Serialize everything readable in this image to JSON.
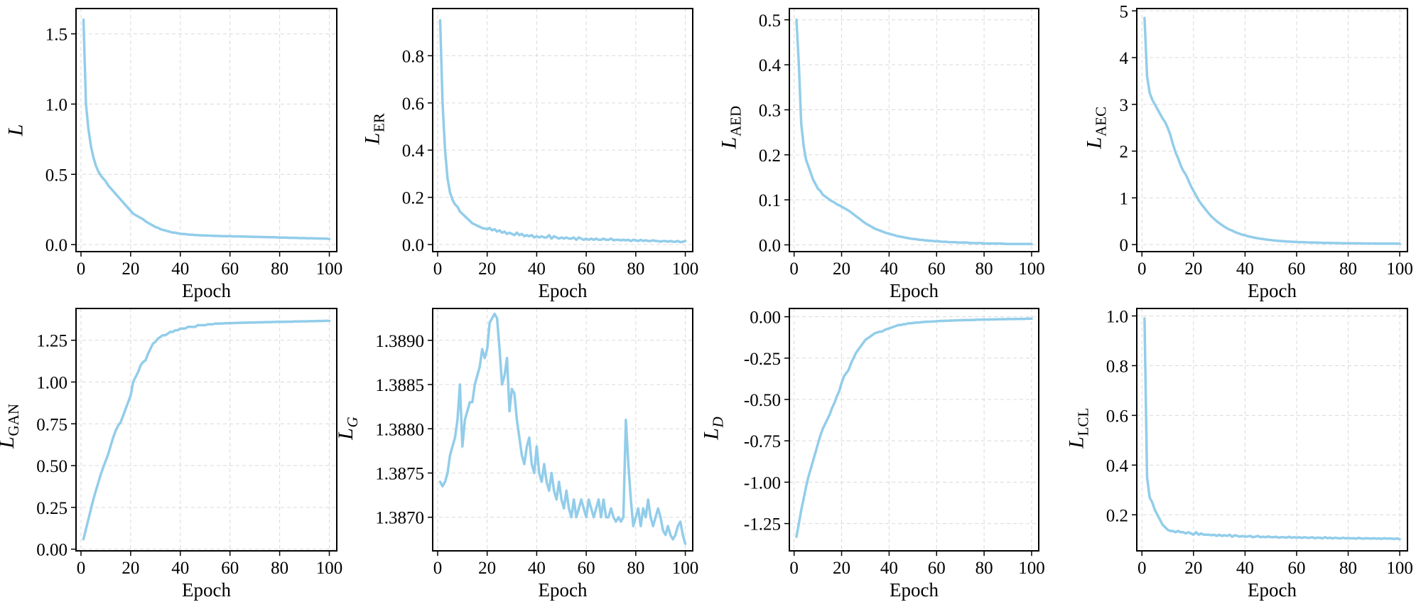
{
  "figure": {
    "line_color": "#92cdea",
    "grid": true
  },
  "chart_data": [
    {
      "type": "line",
      "ylabel": "L",
      "ylabel_sub": "",
      "sub_italic": false,
      "xlabel": "Epoch",
      "xlim": [
        -2,
        103
      ],
      "ylim": [
        -0.05,
        1.68
      ],
      "xticks": [
        0,
        20,
        40,
        60,
        80,
        100
      ],
      "xtick_labels": [
        "0",
        "20",
        "40",
        "60",
        "80",
        "100"
      ],
      "yticks": [
        0,
        0.5,
        1.0,
        1.5
      ],
      "ytick_labels": [
        "0.0",
        "0.5",
        "1.0",
        "1.5"
      ],
      "x_start": 1,
      "x_step": 1,
      "y": [
        1.6,
        1.0,
        0.82,
        0.7,
        0.62,
        0.56,
        0.52,
        0.49,
        0.47,
        0.45,
        0.42,
        0.4,
        0.38,
        0.36,
        0.34,
        0.32,
        0.3,
        0.28,
        0.26,
        0.24,
        0.22,
        0.21,
        0.2,
        0.19,
        0.18,
        0.165,
        0.155,
        0.145,
        0.135,
        0.125,
        0.12,
        0.11,
        0.105,
        0.1,
        0.095,
        0.09,
        0.085,
        0.085,
        0.08,
        0.078,
        0.075,
        0.075,
        0.072,
        0.07,
        0.07,
        0.068,
        0.068,
        0.066,
        0.065,
        0.065,
        0.064,
        0.064,
        0.063,
        0.062,
        0.062,
        0.061,
        0.06,
        0.06,
        0.06,
        0.06,
        0.059,
        0.058,
        0.058,
        0.058,
        0.057,
        0.057,
        0.056,
        0.056,
        0.055,
        0.055,
        0.055,
        0.054,
        0.054,
        0.053,
        0.053,
        0.052,
        0.052,
        0.052,
        0.051,
        0.05,
        0.05,
        0.05,
        0.049,
        0.048,
        0.048,
        0.048,
        0.047,
        0.046,
        0.046,
        0.046,
        0.045,
        0.045,
        0.045,
        0.044,
        0.044,
        0.043,
        0.043,
        0.042,
        0.042,
        0.04
      ]
    },
    {
      "type": "line",
      "ylabel": "L",
      "ylabel_sub": "ER",
      "sub_italic": false,
      "xlabel": "Epoch",
      "xlim": [
        -2,
        103
      ],
      "ylim": [
        -0.03,
        1.0
      ],
      "xticks": [
        0,
        20,
        40,
        60,
        80,
        100
      ],
      "xtick_labels": [
        "0",
        "20",
        "40",
        "60",
        "80",
        "100"
      ],
      "yticks": [
        0,
        0.2,
        0.4,
        0.6,
        0.8
      ],
      "ytick_labels": [
        "0.0",
        "0.2",
        "0.4",
        "0.6",
        "0.8"
      ],
      "x_start": 1,
      "x_step": 1,
      "y": [
        0.95,
        0.6,
        0.4,
        0.28,
        0.22,
        0.19,
        0.17,
        0.16,
        0.14,
        0.13,
        0.12,
        0.11,
        0.1,
        0.09,
        0.085,
        0.08,
        0.075,
        0.07,
        0.068,
        0.065,
        0.07,
        0.06,
        0.065,
        0.055,
        0.06,
        0.05,
        0.055,
        0.045,
        0.05,
        0.045,
        0.04,
        0.05,
        0.04,
        0.045,
        0.035,
        0.04,
        0.035,
        0.04,
        0.03,
        0.035,
        0.03,
        0.035,
        0.03,
        0.03,
        0.04,
        0.025,
        0.035,
        0.03,
        0.025,
        0.03,
        0.025,
        0.03,
        0.025,
        0.025,
        0.03,
        0.02,
        0.03,
        0.025,
        0.02,
        0.025,
        0.02,
        0.025,
        0.02,
        0.025,
        0.02,
        0.02,
        0.025,
        0.02,
        0.02,
        0.025,
        0.018,
        0.02,
        0.02,
        0.018,
        0.02,
        0.018,
        0.02,
        0.015,
        0.02,
        0.018,
        0.015,
        0.02,
        0.015,
        0.018,
        0.015,
        0.015,
        0.018,
        0.015,
        0.015,
        0.012,
        0.015,
        0.015,
        0.012,
        0.015,
        0.012,
        0.012,
        0.015,
        0.01,
        0.012,
        0.015
      ]
    },
    {
      "type": "line",
      "ylabel": "L",
      "ylabel_sub": "AED",
      "sub_italic": false,
      "xlabel": "Epoch",
      "xlim": [
        -2,
        103
      ],
      "ylim": [
        -0.015,
        0.525
      ],
      "xticks": [
        0,
        20,
        40,
        60,
        80,
        100
      ],
      "xtick_labels": [
        "0",
        "20",
        "40",
        "60",
        "80",
        "100"
      ],
      "yticks": [
        0,
        0.1,
        0.2,
        0.3,
        0.4,
        0.5
      ],
      "ytick_labels": [
        "0.0",
        "0.1",
        "0.2",
        "0.3",
        "0.4",
        "0.5"
      ],
      "x_start": 1,
      "x_step": 1,
      "y": [
        0.5,
        0.4,
        0.27,
        0.22,
        0.19,
        0.175,
        0.16,
        0.145,
        0.135,
        0.125,
        0.12,
        0.112,
        0.108,
        0.104,
        0.1,
        0.097,
        0.094,
        0.09,
        0.088,
        0.085,
        0.082,
        0.079,
        0.076,
        0.072,
        0.068,
        0.064,
        0.06,
        0.056,
        0.052,
        0.048,
        0.045,
        0.042,
        0.039,
        0.036,
        0.034,
        0.032,
        0.03,
        0.028,
        0.026,
        0.025,
        0.023,
        0.022,
        0.02,
        0.019,
        0.018,
        0.017,
        0.016,
        0.015,
        0.014,
        0.013,
        0.013,
        0.012,
        0.011,
        0.011,
        0.01,
        0.01,
        0.009,
        0.009,
        0.008,
        0.008,
        0.008,
        0.007,
        0.007,
        0.007,
        0.006,
        0.006,
        0.006,
        0.006,
        0.005,
        0.005,
        0.005,
        0.005,
        0.005,
        0.004,
        0.004,
        0.004,
        0.004,
        0.004,
        0.004,
        0.003,
        0.003,
        0.003,
        0.003,
        0.003,
        0.003,
        0.003,
        0.003,
        0.003,
        0.002,
        0.002,
        0.002,
        0.002,
        0.002,
        0.002,
        0.002,
        0.002,
        0.002,
        0.002,
        0.002,
        0.002
      ]
    },
    {
      "type": "line",
      "ylabel": "L",
      "ylabel_sub": "AEC",
      "sub_italic": false,
      "xlabel": "Epoch",
      "xlim": [
        -2,
        103
      ],
      "ylim": [
        -0.15,
        5.05
      ],
      "xticks": [
        0,
        20,
        40,
        60,
        80,
        100
      ],
      "xtick_labels": [
        "0",
        "20",
        "40",
        "60",
        "80",
        "100"
      ],
      "yticks": [
        0,
        1,
        2,
        3,
        4,
        5
      ],
      "ytick_labels": [
        "0",
        "1",
        "2",
        "3",
        "4",
        "5"
      ],
      "x_start": 1,
      "x_step": 1,
      "y": [
        4.85,
        3.6,
        3.25,
        3.1,
        3.0,
        2.9,
        2.8,
        2.7,
        2.62,
        2.5,
        2.35,
        2.15,
        1.98,
        1.85,
        1.7,
        1.58,
        1.5,
        1.38,
        1.25,
        1.15,
        1.05,
        0.95,
        0.87,
        0.8,
        0.73,
        0.66,
        0.6,
        0.55,
        0.5,
        0.46,
        0.42,
        0.38,
        0.35,
        0.32,
        0.3,
        0.27,
        0.25,
        0.23,
        0.21,
        0.2,
        0.18,
        0.17,
        0.155,
        0.145,
        0.135,
        0.125,
        0.118,
        0.11,
        0.103,
        0.097,
        0.09,
        0.085,
        0.08,
        0.076,
        0.072,
        0.068,
        0.065,
        0.062,
        0.059,
        0.056,
        0.054,
        0.052,
        0.05,
        0.048,
        0.046,
        0.044,
        0.043,
        0.041,
        0.04,
        0.039,
        0.037,
        0.036,
        0.035,
        0.034,
        0.033,
        0.032,
        0.031,
        0.03,
        0.03,
        0.029,
        0.028,
        0.027,
        0.027,
        0.026,
        0.025,
        0.025,
        0.024,
        0.024,
        0.023,
        0.023,
        0.022,
        0.022,
        0.021,
        0.021,
        0.02,
        0.02,
        0.02,
        0.02,
        0.019,
        0.019
      ]
    },
    {
      "type": "line",
      "ylabel": "L",
      "ylabel_sub": "GAN",
      "sub_italic": false,
      "xlabel": "Epoch",
      "xlim": [
        -2,
        103
      ],
      "ylim": [
        -0.01,
        1.44
      ],
      "xticks": [
        0,
        20,
        40,
        60,
        80,
        100
      ],
      "xtick_labels": [
        "0",
        "20",
        "40",
        "60",
        "80",
        "100"
      ],
      "yticks": [
        0,
        0.25,
        0.5,
        0.75,
        1.0,
        1.25
      ],
      "ytick_labels": [
        "0.00",
        "0.25",
        "0.50",
        "0.75",
        "1.00",
        "1.25"
      ],
      "x_start": 1,
      "x_step": 1,
      "y": [
        0.06,
        0.12,
        0.18,
        0.24,
        0.3,
        0.35,
        0.4,
        0.45,
        0.49,
        0.53,
        0.57,
        0.62,
        0.67,
        0.71,
        0.74,
        0.76,
        0.8,
        0.84,
        0.88,
        0.92,
        1.0,
        1.03,
        1.06,
        1.1,
        1.12,
        1.13,
        1.17,
        1.2,
        1.23,
        1.24,
        1.26,
        1.27,
        1.28,
        1.28,
        1.29,
        1.3,
        1.3,
        1.31,
        1.31,
        1.32,
        1.32,
        1.32,
        1.33,
        1.33,
        1.33,
        1.33,
        1.34,
        1.34,
        1.34,
        1.34,
        1.345,
        1.345,
        1.345,
        1.35,
        1.35,
        1.35,
        1.35,
        1.352,
        1.352,
        1.352,
        1.353,
        1.353,
        1.354,
        1.354,
        1.355,
        1.355,
        1.355,
        1.356,
        1.356,
        1.356,
        1.357,
        1.357,
        1.357,
        1.358,
        1.358,
        1.358,
        1.359,
        1.359,
        1.36,
        1.36,
        1.36,
        1.36,
        1.361,
        1.361,
        1.361,
        1.362,
        1.362,
        1.362,
        1.363,
        1.363,
        1.363,
        1.364,
        1.364,
        1.364,
        1.365,
        1.365,
        1.365,
        1.366,
        1.366,
        1.366
      ]
    },
    {
      "type": "line",
      "ylabel": "L",
      "ylabel_sub": "G",
      "sub_italic": true,
      "xlabel": "Epoch",
      "xlim": [
        -2,
        103
      ],
      "ylim": [
        1.38662,
        1.38936
      ],
      "xticks": [
        0,
        20,
        40,
        60,
        80,
        100
      ],
      "xtick_labels": [
        "0",
        "20",
        "40",
        "60",
        "80",
        "100"
      ],
      "yticks": [
        1.387,
        1.3875,
        1.388,
        1.3885,
        1.389
      ],
      "ytick_labels": [
        "1.3870",
        "1.3875",
        "1.3880",
        "1.3885",
        "1.3890"
      ],
      "x_start": 1,
      "x_step": 1,
      "y": [
        1.3874,
        1.38735,
        1.3874,
        1.3875,
        1.3877,
        1.3878,
        1.3879,
        1.3881,
        1.3885,
        1.3878,
        1.3881,
        1.3882,
        1.3883,
        1.3883,
        1.3885,
        1.3886,
        1.3887,
        1.3889,
        1.3888,
        1.3889,
        1.3892,
        1.38925,
        1.3893,
        1.38925,
        1.3889,
        1.3885,
        1.3886,
        1.3888,
        1.3882,
        1.38845,
        1.3884,
        1.3881,
        1.3879,
        1.3877,
        1.3876,
        1.3878,
        1.3879,
        1.3876,
        1.3875,
        1.3878,
        1.3875,
        1.3874,
        1.3876,
        1.3874,
        1.3873,
        1.3875,
        1.3873,
        1.3872,
        1.3874,
        1.3872,
        1.3871,
        1.3873,
        1.3871,
        1.387,
        1.3872,
        1.387,
        1.3871,
        1.3872,
        1.3871,
        1.387,
        1.3872,
        1.3871,
        1.387,
        1.3871,
        1.3872,
        1.387,
        1.3872,
        1.387,
        1.387,
        1.3871,
        1.387,
        1.38695,
        1.387,
        1.38695,
        1.387,
        1.3881,
        1.3876,
        1.3872,
        1.3869,
        1.387,
        1.3871,
        1.3869,
        1.3871,
        1.387,
        1.3872,
        1.387,
        1.3869,
        1.387,
        1.3871,
        1.387,
        1.38685,
        1.3868,
        1.3869,
        1.3868,
        1.38675,
        1.3868,
        1.3869,
        1.38695,
        1.3868,
        1.3867
      ]
    },
    {
      "type": "line",
      "ylabel": "L",
      "ylabel_sub": "D",
      "sub_italic": true,
      "xlabel": "Epoch",
      "xlim": [
        -2,
        103
      ],
      "ylim": [
        -1.415,
        0.05
      ],
      "xticks": [
        0,
        20,
        40,
        60,
        80,
        100
      ],
      "xtick_labels": [
        "0",
        "20",
        "40",
        "60",
        "80",
        "100"
      ],
      "yticks": [
        0,
        -0.25,
        -0.5,
        -0.75,
        -1.0,
        -1.25
      ],
      "ytick_labels": [
        "0.00",
        "-0.25",
        "-0.50",
        "-0.75",
        "-1.00",
        "-1.25"
      ],
      "x_start": 1,
      "x_step": 1,
      "y": [
        -1.33,
        -1.25,
        -1.17,
        -1.1,
        -1.03,
        -0.97,
        -0.92,
        -0.87,
        -0.82,
        -0.77,
        -0.72,
        -0.68,
        -0.65,
        -0.62,
        -0.59,
        -0.55,
        -0.52,
        -0.48,
        -0.45,
        -0.4,
        -0.36,
        -0.34,
        -0.32,
        -0.28,
        -0.25,
        -0.22,
        -0.2,
        -0.18,
        -0.16,
        -0.14,
        -0.13,
        -0.12,
        -0.11,
        -0.1,
        -0.095,
        -0.09,
        -0.09,
        -0.08,
        -0.075,
        -0.07,
        -0.065,
        -0.06,
        -0.055,
        -0.05,
        -0.05,
        -0.045,
        -0.045,
        -0.04,
        -0.04,
        -0.038,
        -0.036,
        -0.035,
        -0.034,
        -0.032,
        -0.031,
        -0.03,
        -0.03,
        -0.029,
        -0.028,
        -0.027,
        -0.026,
        -0.025,
        -0.025,
        -0.024,
        -0.024,
        -0.023,
        -0.023,
        -0.022,
        -0.022,
        -0.021,
        -0.021,
        -0.02,
        -0.02,
        -0.02,
        -0.019,
        -0.019,
        -0.018,
        -0.018,
        -0.018,
        -0.017,
        -0.017,
        -0.017,
        -0.016,
        -0.016,
        -0.016,
        -0.015,
        -0.015,
        -0.015,
        -0.015,
        -0.014,
        -0.014,
        -0.014,
        -0.014,
        -0.013,
        -0.013,
        -0.013,
        -0.013,
        -0.012,
        -0.012,
        -0.012
      ]
    },
    {
      "type": "line",
      "ylabel": "L",
      "ylabel_sub": "LCL",
      "sub_italic": false,
      "xlabel": "Epoch",
      "xlim": [
        -2,
        103
      ],
      "ylim": [
        0.055,
        1.03
      ],
      "xticks": [
        0,
        20,
        40,
        60,
        80,
        100
      ],
      "xtick_labels": [
        "0",
        "20",
        "40",
        "60",
        "80",
        "100"
      ],
      "yticks": [
        0.2,
        0.4,
        0.6,
        0.8,
        1.0
      ],
      "ytick_labels": [
        "0.2",
        "0.4",
        "0.6",
        "0.8",
        "1.0"
      ],
      "x_start": 1,
      "x_step": 1,
      "y": [
        0.99,
        0.35,
        0.27,
        0.25,
        0.22,
        0.2,
        0.18,
        0.16,
        0.15,
        0.14,
        0.135,
        0.135,
        0.13,
        0.135,
        0.13,
        0.13,
        0.125,
        0.13,
        0.125,
        0.12,
        0.13,
        0.12,
        0.125,
        0.12,
        0.12,
        0.12,
        0.118,
        0.12,
        0.115,
        0.12,
        0.115,
        0.118,
        0.115,
        0.12,
        0.112,
        0.118,
        0.115,
        0.112,
        0.115,
        0.112,
        0.113,
        0.115,
        0.11,
        0.112,
        0.115,
        0.11,
        0.112,
        0.11,
        0.113,
        0.11,
        0.11,
        0.112,
        0.108,
        0.11,
        0.11,
        0.108,
        0.112,
        0.108,
        0.11,
        0.108,
        0.11,
        0.107,
        0.11,
        0.108,
        0.107,
        0.11,
        0.106,
        0.108,
        0.108,
        0.105,
        0.11,
        0.106,
        0.108,
        0.105,
        0.108,
        0.106,
        0.105,
        0.108,
        0.105,
        0.107,
        0.105,
        0.106,
        0.104,
        0.107,
        0.105,
        0.104,
        0.106,
        0.105,
        0.104,
        0.106,
        0.104,
        0.105,
        0.103,
        0.106,
        0.104,
        0.105,
        0.104,
        0.103,
        0.105,
        0.102
      ]
    }
  ]
}
